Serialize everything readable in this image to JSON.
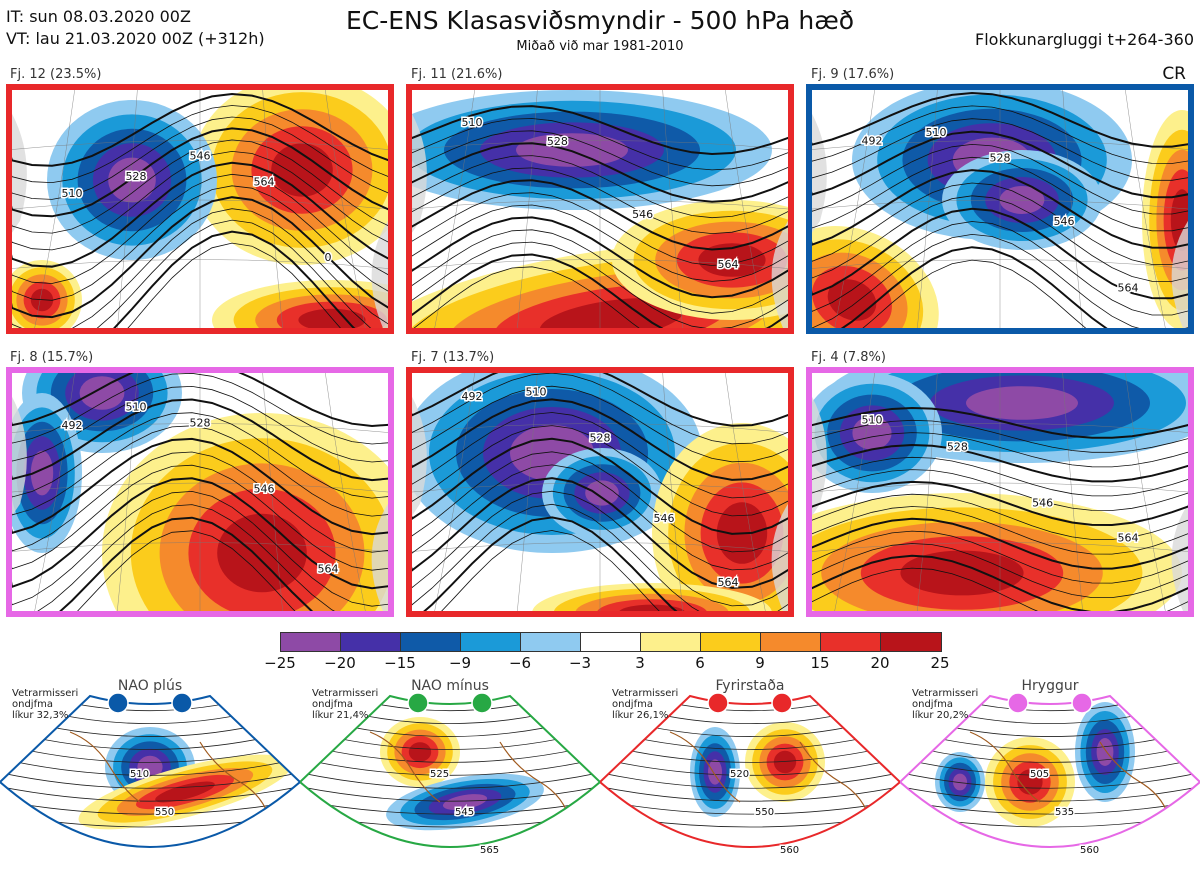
{
  "header": {
    "it": "IT: sun 08.03.2020 00Z",
    "vt": "VT: lau 21.03.2020 00Z  (+312h)",
    "title": "EC-ENS Klasasviðsmyndir - 500 hPa hæð",
    "subtitle": "Miðað við mar 1981-2010",
    "window": "Flokkunargluggi t+264-360",
    "cr": "CR"
  },
  "clusters": [
    {
      "label": "Fj. 12 (23.5%)",
      "border": "#e8282a",
      "contours": [
        "510",
        "528",
        "546",
        "564",
        "0"
      ]
    },
    {
      "label": "Fj. 11 (21.6%)",
      "border": "#e8282a",
      "contours": [
        "510",
        "528",
        "546",
        "564"
      ]
    },
    {
      "label": "Fj. 9 (17.6%)",
      "border": "#0a59a8",
      "contours": [
        "492",
        "510",
        "528",
        "546",
        "564"
      ]
    },
    {
      "label": "Fj. 8 (15.7%)",
      "border": "#e668e6",
      "contours": [
        "492",
        "510",
        "528",
        "546",
        "564"
      ]
    },
    {
      "label": "Fj. 7 (13.7%)",
      "border": "#e8282a",
      "contours": [
        "492",
        "510",
        "528",
        "546",
        "564"
      ]
    },
    {
      "label": "Fj. 4 (7.8%)",
      "border": "#e668e6",
      "contours": [
        "510",
        "528",
        "546",
        "564"
      ]
    }
  ],
  "colorbar": {
    "colors": [
      "#8e4aa6",
      "#4530a8",
      "#0f5aa8",
      "#1b9ad8",
      "#8fcaf0",
      "#ffffff",
      "#fdf08c",
      "#fbcc1c",
      "#f58a2c",
      "#e8302a",
      "#b8141a"
    ],
    "ticks": [
      "−25",
      "−20",
      "−15",
      "−9",
      "−6",
      "−3",
      "3",
      "6",
      "9",
      "15",
      "20",
      "25"
    ]
  },
  "regimes": [
    {
      "name": "NAO plús",
      "note": [
        "Vetrarmisseri",
        "ondjfma",
        "líkur 32,3%"
      ],
      "color": "#0a59a8",
      "contours": [
        "510",
        "550"
      ]
    },
    {
      "name": "NAO mínus",
      "note": [
        "Vetrarmisseri",
        "ondjfma",
        "líkur 21,4%"
      ],
      "color": "#27a844",
      "contours": [
        "525",
        "545",
        "565"
      ]
    },
    {
      "name": "Fyrirstaða",
      "note": [
        "Vetrarmisseri",
        "ondjfma",
        "líkur 26,1%"
      ],
      "color": "#e8282a",
      "contours": [
        "520",
        "550",
        "560"
      ]
    },
    {
      "name": "Hryggur",
      "note": [
        "Vetrarmisseri",
        "ondjfma",
        "líkur 20,2%"
      ],
      "color": "#e668e6",
      "contours": [
        "505",
        "535",
        "560"
      ]
    }
  ]
}
